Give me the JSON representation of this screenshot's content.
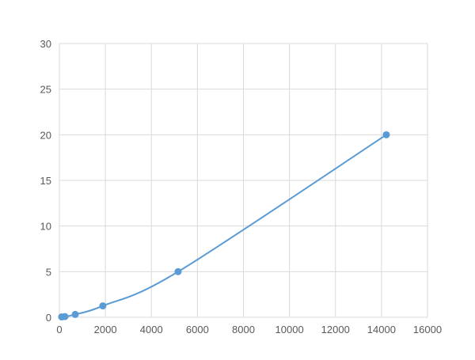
{
  "chart_data": {
    "type": "scatter",
    "title": "",
    "xlabel": "",
    "ylabel": "",
    "xlim": [
      0,
      16000
    ],
    "ylim": [
      0,
      30
    ],
    "xticks": [
      0,
      2000,
      4000,
      6000,
      8000,
      10000,
      12000,
      14000,
      16000
    ],
    "yticks": [
      0,
      5,
      10,
      15,
      20,
      25,
      30
    ],
    "grid": true,
    "series": [
      {
        "x": [
          100,
          240,
          690,
          1890,
          5160,
          14210
        ],
        "y": [
          0.04,
          0.08,
          0.31,
          1.25,
          5,
          20
        ],
        "color": "#5b9bd5",
        "smooth": true
      }
    ]
  }
}
